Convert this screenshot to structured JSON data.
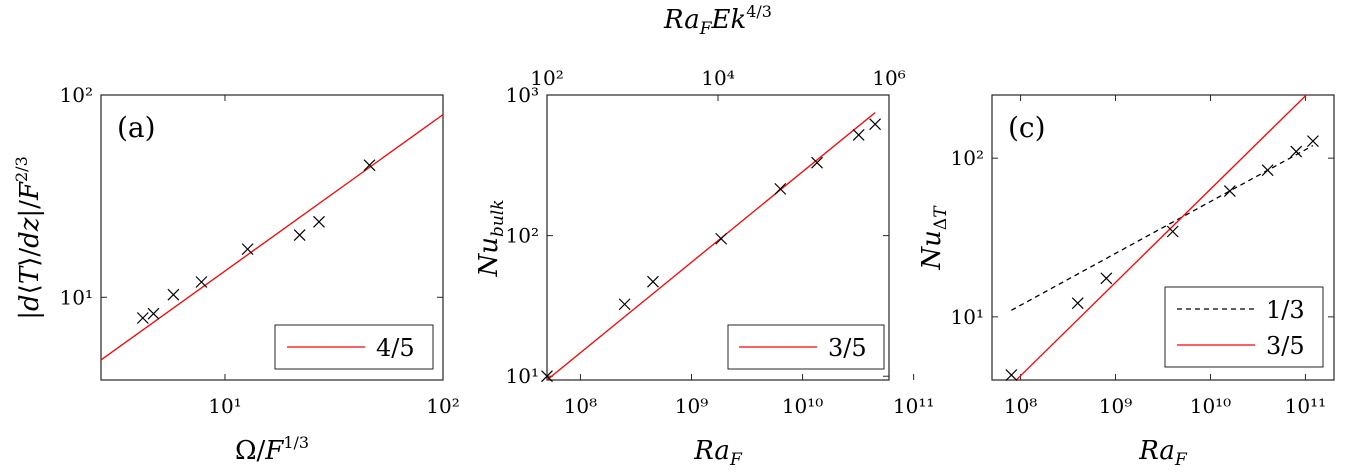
{
  "chart_data": [
    {
      "type": "scatter",
      "panel_label": "(a)",
      "xlabel": "Ω/F^{1/3}",
      "ylabel": "|d⟨T⟩/dz|/F^{2/3}",
      "xscale": "log",
      "yscale": "log",
      "xlim": [
        2.7,
        100
      ],
      "ylim": [
        3.9,
        100
      ],
      "xticks": [
        {
          "v": 10,
          "label": "10¹"
        },
        {
          "v": 100,
          "label": "10²"
        }
      ],
      "yticks": [
        {
          "v": 10,
          "label": "10¹"
        },
        {
          "v": 100,
          "label": "10²"
        }
      ],
      "points": [
        {
          "x": 4.2,
          "y": 7.9
        },
        {
          "x": 4.7,
          "y": 8.3
        },
        {
          "x": 5.8,
          "y": 10.3
        },
        {
          "x": 7.8,
          "y": 11.9
        },
        {
          "x": 12.7,
          "y": 17.3
        },
        {
          "x": 22,
          "y": 20.3
        },
        {
          "x": 27,
          "y": 23.6
        },
        {
          "x": 46,
          "y": 45
        }
      ],
      "fit_lines": [
        {
          "name": "4/5",
          "color": "#ff0000",
          "dash": "solid",
          "x": [
            2.7,
            100
          ],
          "y": [
            4.9,
            80
          ]
        }
      ],
      "legend": {
        "position": "bottom-right",
        "entries": [
          "4/5"
        ]
      }
    },
    {
      "type": "scatter",
      "panel_label": "",
      "xlabel": "Ra_F",
      "ylabel": "Nu_{bulk}",
      "top_xlabel": "Ra_F Ek^{4/3}",
      "xscale": "log",
      "yscale": "log",
      "xlim": [
        50000000.0,
        60000000000.0
      ],
      "ylim": [
        9.4,
        1000
      ],
      "xticks": [
        {
          "v": 100000000.0,
          "label": "10⁸"
        },
        {
          "v": 1000000000.0,
          "label": "10⁹"
        },
        {
          "v": 10000000000.0,
          "label": "10¹⁰"
        },
        {
          "v": 100000000000.0,
          "label": "10¹¹"
        }
      ],
      "yticks": [
        {
          "v": 10,
          "label": "10¹"
        },
        {
          "v": 100,
          "label": "10²"
        },
        {
          "v": 1000,
          "label": "10³"
        }
      ],
      "top_xlim": [
        100,
        1000000
      ],
      "top_xticks": [
        {
          "v": 100,
          "label": "10²"
        },
        {
          "v": 10000,
          "label": "10⁴"
        },
        {
          "v": 1000000,
          "label": "10⁶"
        }
      ],
      "points": [
        {
          "x": 50000000.0,
          "y": 10
        },
        {
          "x": 250000000.0,
          "y": 32.5
        },
        {
          "x": 450000000.0,
          "y": 47
        },
        {
          "x": 1850000000.0,
          "y": 95
        },
        {
          "x": 6300000000.0,
          "y": 215
        },
        {
          "x": 13500000000.0,
          "y": 330
        },
        {
          "x": 32000000000.0,
          "y": 520
        },
        {
          "x": 45000000000.0,
          "y": 620
        }
      ],
      "fit_lines": [
        {
          "name": "3/5",
          "color": "#ff0000",
          "dash": "solid",
          "x": [
            50000000.0,
            45000000000.0
          ],
          "y": [
            9.4,
            750
          ]
        }
      ],
      "legend": {
        "position": "bottom-right",
        "entries": [
          "3/5"
        ]
      }
    },
    {
      "type": "scatter",
      "panel_label": "(c)",
      "xlabel": "Ra_F",
      "ylabel": "Nu_{ΔT}",
      "xscale": "log",
      "yscale": "log",
      "xlim": [
        50000000.0,
        200000000000.0
      ],
      "ylim": [
        4,
        250
      ],
      "xticks": [
        {
          "v": 100000000.0,
          "label": "10⁸"
        },
        {
          "v": 1000000000.0,
          "label": "10⁹"
        },
        {
          "v": 10000000000.0,
          "label": "10¹⁰"
        },
        {
          "v": 100000000000.0,
          "label": "10¹¹"
        }
      ],
      "yticks": [
        {
          "v": 10,
          "label": "10¹"
        },
        {
          "v": 100,
          "label": "10²"
        }
      ],
      "points": [
        {
          "x": 80000000.0,
          "y": 4.3
        },
        {
          "x": 400000000.0,
          "y": 12.2
        },
        {
          "x": 800000000.0,
          "y": 17.5
        },
        {
          "x": 4000000000.0,
          "y": 34.5
        },
        {
          "x": 16000000000.0,
          "y": 62
        },
        {
          "x": 40000000000.0,
          "y": 84
        },
        {
          "x": 80000000000.0,
          "y": 110
        },
        {
          "x": 120000000000.0,
          "y": 128
        }
      ],
      "fit_lines": [
        {
          "name": "1/3",
          "color": "#000000",
          "dash": "dashed",
          "x": [
            80000000.0,
            120000000000.0
          ],
          "y": [
            11,
            120
          ]
        },
        {
          "name": "3/5",
          "color": "#ff0000",
          "dash": "solid",
          "x": [
            90000000.0,
            105000000000.0
          ],
          "y": [
            4,
            254
          ]
        }
      ],
      "legend": {
        "position": "bottom-right",
        "entries": [
          "1/3",
          "3/5"
        ]
      }
    }
  ]
}
